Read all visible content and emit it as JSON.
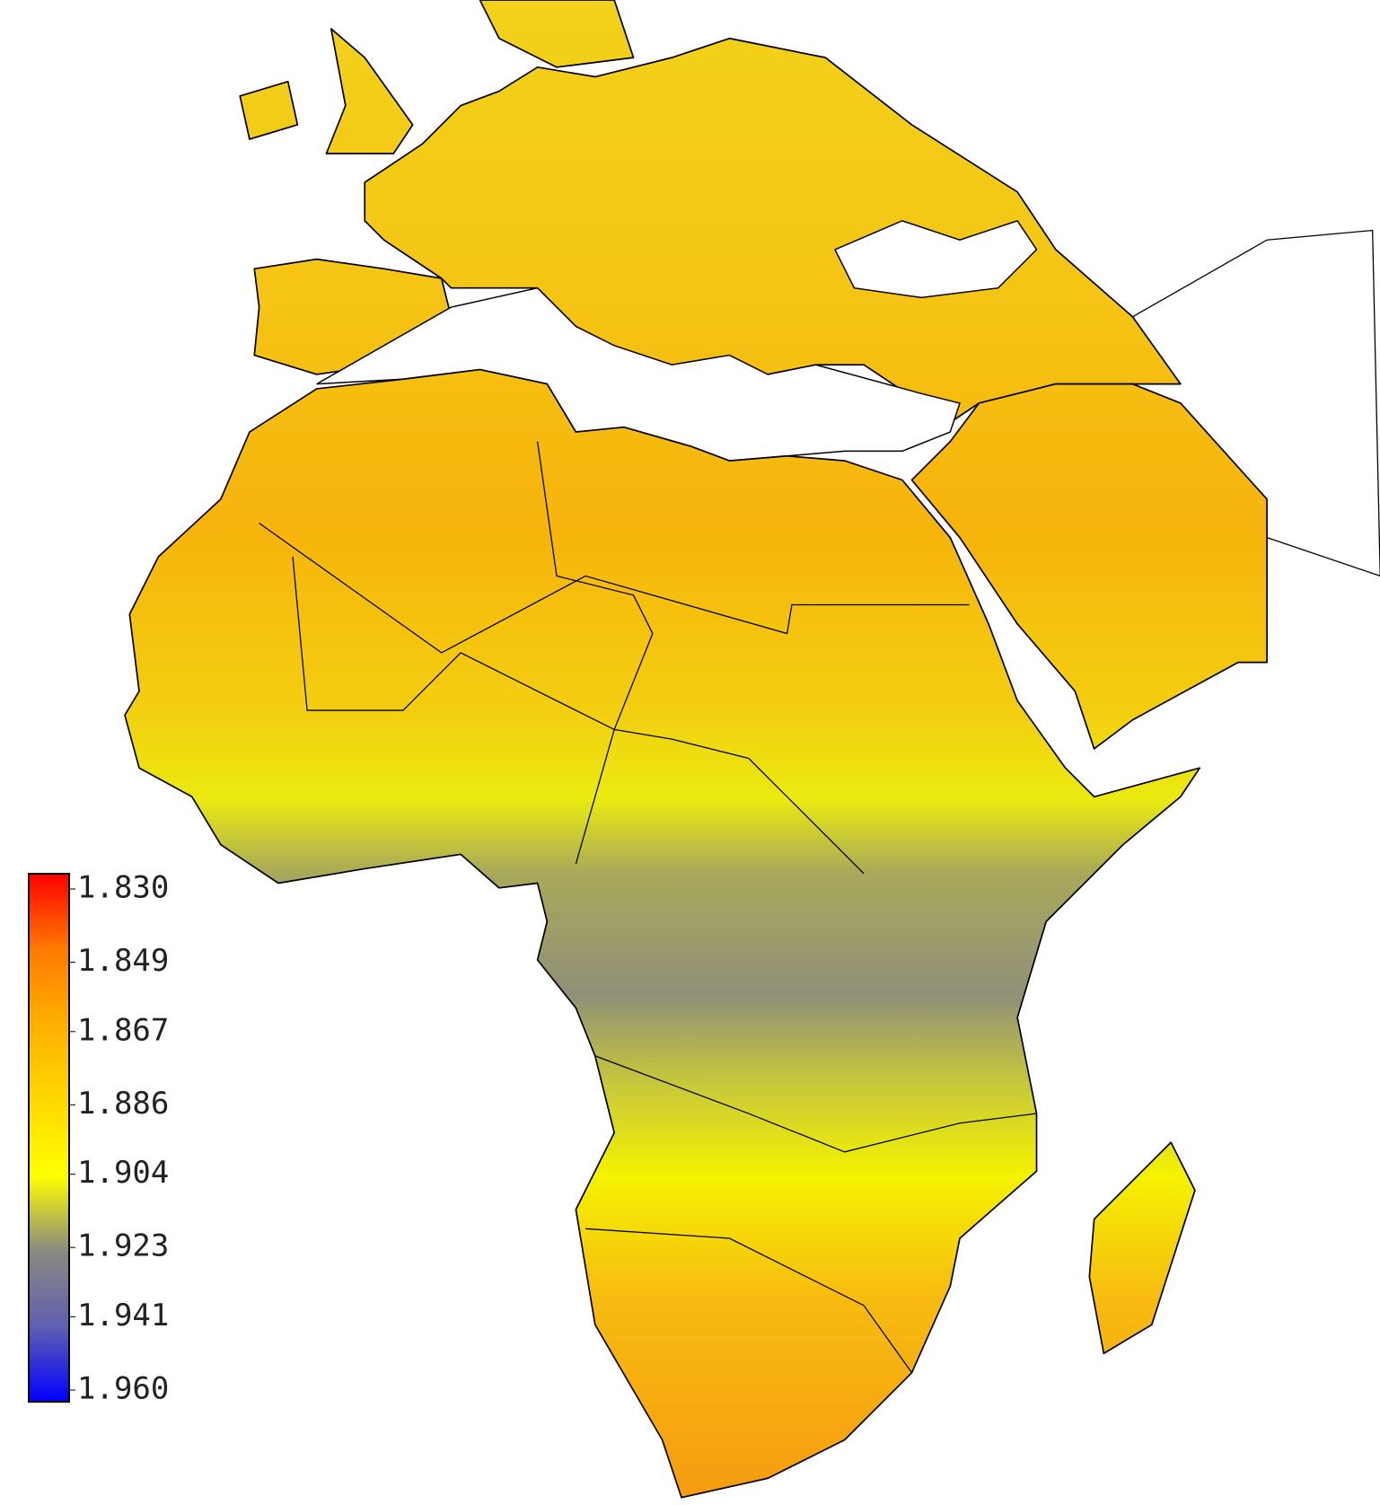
{
  "colorbar": {
    "ticks": [
      {
        "value": 1.83,
        "label": "1.830"
      },
      {
        "value": 1.849,
        "label": "1.849"
      },
      {
        "value": 1.867,
        "label": "1.867"
      },
      {
        "value": 1.886,
        "label": "1.886"
      },
      {
        "value": 1.904,
        "label": "1.904"
      },
      {
        "value": 1.923,
        "label": "1.923"
      },
      {
        "value": 1.941,
        "label": "1.941"
      },
      {
        "value": 1.96,
        "label": "1.960"
      }
    ],
    "lim": [
      1.83,
      1.96
    ],
    "colors": [
      "#ff0000",
      "#ff7a00",
      "#ffb000",
      "#ffd800",
      "#ffff00",
      "#8a8a80",
      "#6060b0",
      "#0000ff"
    ]
  }
}
